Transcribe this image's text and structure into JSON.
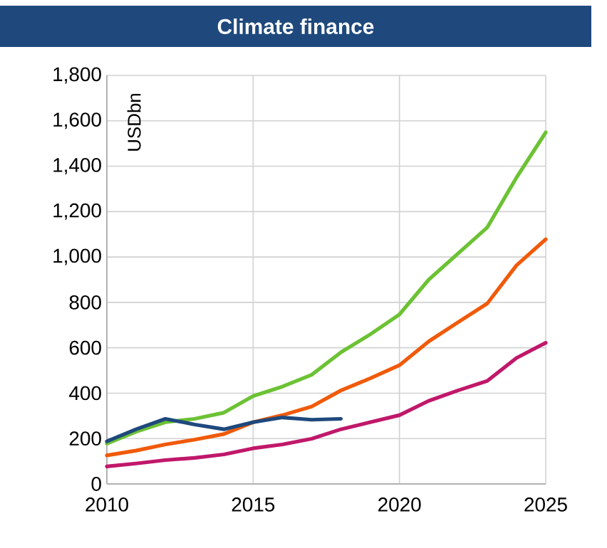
{
  "chart_data": {
    "type": "line",
    "title": "Climate finance",
    "ylabel": "USDbn",
    "x": [
      2010,
      2011,
      2012,
      2013,
      2014,
      2015,
      2016,
      2017,
      2018,
      2019,
      2020,
      2021,
      2022,
      2023,
      2024,
      2025
    ],
    "series": [
      {
        "color": "#6cc234",
        "values": [
          178,
          230,
          272,
          287,
          314,
          387,
          429,
          481,
          580,
          659,
          747,
          900,
          1015,
          1130,
          1350,
          1549
        ]
      },
      {
        "color": "#f05a0a",
        "values": [
          126,
          147,
          174,
          195,
          220,
          272,
          303,
          341,
          412,
          465,
          523,
          628,
          712,
          795,
          963,
          1078
        ]
      },
      {
        "color": "#c0186a",
        "values": [
          77,
          90,
          105,
          115,
          130,
          157,
          174,
          199,
          241,
          272,
          303,
          366,
          412,
          454,
          555,
          622
        ]
      },
      {
        "color": "#1f497d",
        "values": [
          188,
          241,
          287,
          262,
          241,
          272,
          293,
          283,
          287,
          null,
          null,
          null,
          null,
          null,
          null,
          null
        ]
      }
    ],
    "xlim": [
      2010,
      2025
    ],
    "xticks": [
      2010,
      2015,
      2020,
      2025
    ],
    "ylim": [
      0,
      1800
    ],
    "yticks": [
      0,
      200,
      400,
      600,
      800,
      {
        "value": 1000,
        "label": "1,000"
      },
      {
        "value": 1200,
        "label": "1,200"
      },
      {
        "value": 1400,
        "label": "1,400"
      },
      {
        "value": 1600,
        "label": "1,600"
      },
      {
        "value": 1800,
        "label": "1,800"
      }
    ],
    "grid": true,
    "marker": "none",
    "line_style": "solid"
  }
}
